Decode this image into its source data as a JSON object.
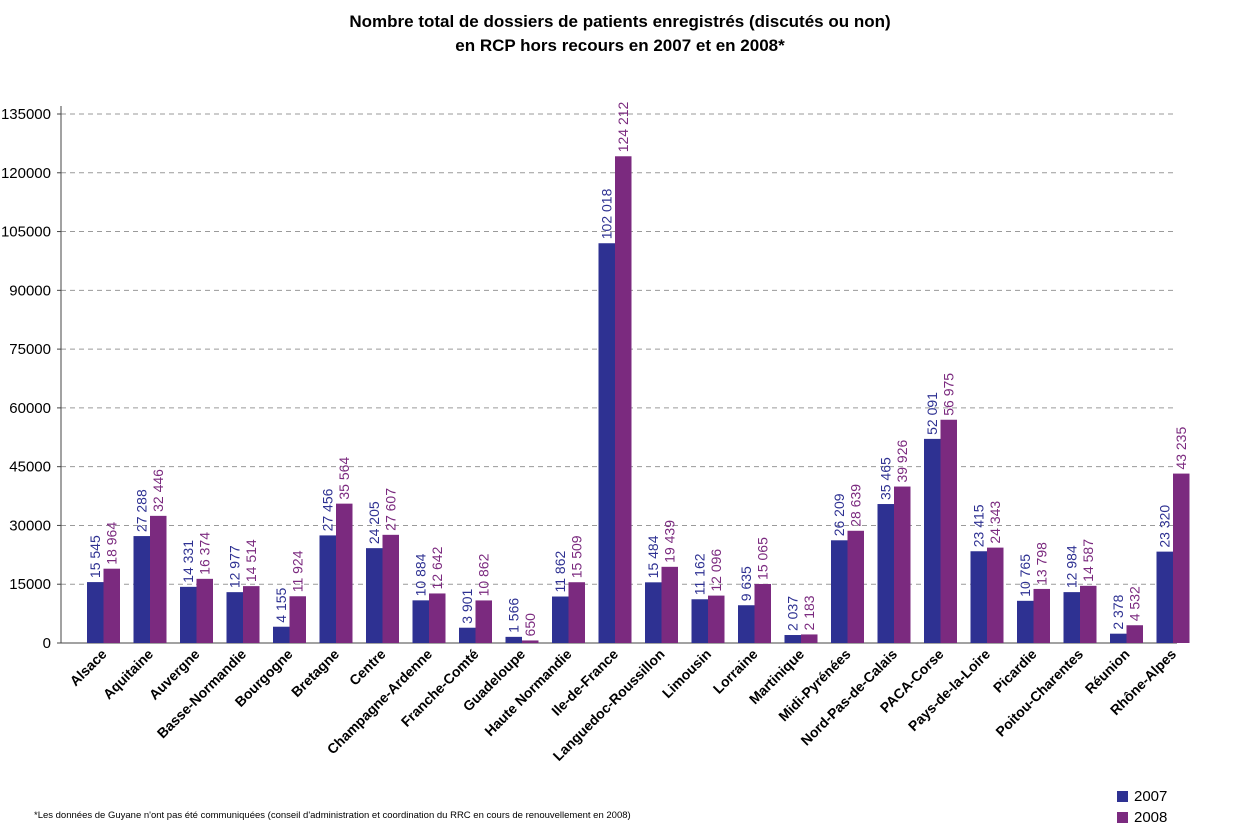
{
  "chart_data": {
    "type": "bar",
    "title_line1": "Nombre total de dossiers de patients enregistrés (discutés ou non)",
    "title_line2": "en RCP hors recours en 2007 et en 2008*",
    "categories": [
      "Alsace",
      "Aquitaine",
      "Auvergne",
      "Basse-Normandie",
      "Bourgogne",
      "Bretagne",
      "Centre",
      "Champagne-Ardenne",
      "Franche-Comté",
      "Guadeloupe",
      "Haute Normandie",
      "Ile-de-France",
      "Languedoc-Roussillon",
      "Limousin",
      "Lorraine",
      "Martinique",
      "Midi-Pyrénées",
      "Nord-Pas-de-Calais",
      "PACA-Corse",
      "Pays-de-la-Loire",
      "Picardie",
      "Poitou-Charentes",
      "Réunion",
      "Rhône-Alpes"
    ],
    "series": [
      {
        "name": "2007",
        "color": "#2e3192",
        "values": [
          15545,
          27288,
          14331,
          12977,
          4155,
          27456,
          24205,
          10884,
          3901,
          1566,
          11862,
          102018,
          15484,
          11162,
          9635,
          2037,
          26209,
          35465,
          52091,
          23415,
          10765,
          12984,
          2378,
          23320
        ],
        "labels": [
          "15 545",
          "27 288",
          "14 331",
          "12 977",
          "4 155",
          "27 456",
          "24 205",
          "10 884",
          "3 901",
          "1 566",
          "11 862",
          "102 018",
          "15 484",
          "11 162",
          "9 635",
          "2 037",
          "26 209",
          "35 465",
          "52 091",
          "23 415",
          "10 765",
          "12 984",
          "2 378",
          "23 320"
        ]
      },
      {
        "name": "2008",
        "color": "#7b2a7f",
        "values": [
          18964,
          32446,
          16374,
          14514,
          11924,
          35564,
          27607,
          12642,
          10862,
          650,
          15509,
          124212,
          19439,
          12096,
          15065,
          2183,
          28639,
          39926,
          56975,
          24343,
          13798,
          14587,
          4532,
          43235
        ],
        "labels": [
          "18 964",
          "32 446",
          "16 374",
          "14 514",
          "11 924",
          "35 564",
          "27 607",
          "12 642",
          "10 862",
          "650",
          "15 509",
          "124 212",
          "19 439",
          "12 096",
          "15 065",
          "2 183",
          "28 639",
          "39 926",
          "56 975",
          "24 343",
          "13 798",
          "14 587",
          "4 532",
          "43 235"
        ]
      }
    ],
    "yticks": [
      "0",
      "15000",
      "30000",
      "45000",
      "60000",
      "75000",
      "90000",
      "105000",
      "120000",
      "135000"
    ],
    "ylim": [
      0,
      135000
    ],
    "grid": true,
    "legend_position": "bottom-right",
    "label_color_2007": "#2e3192",
    "label_color_2008": "#7b2a7f"
  },
  "footnote": "*Les données de Guyane n'ont pas été communiquées  (conseil d'administration et coordination du RRC en cours de renouvellement en 2008)"
}
